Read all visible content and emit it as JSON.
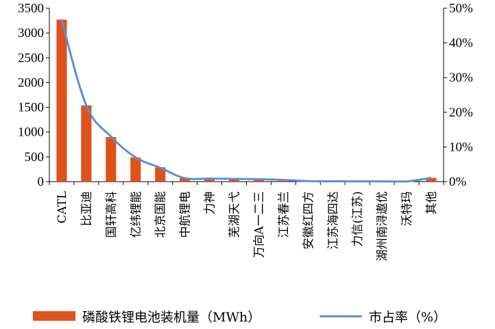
{
  "chart_data": {
    "type": "bar",
    "categories": [
      "CATL",
      "比亚迪",
      "国轩高科",
      "亿纬锂能",
      "北京国能",
      "中航锂电",
      "力神",
      "芜湖天弋",
      "万向A一二三",
      "江苏春兰",
      "安徽红四方",
      "江苏海四达",
      "力信(江苏)",
      "湖州南浔遨优",
      "沃特玛",
      "其他"
    ],
    "series": [
      {
        "name": "磷酸铁锂电池装机量（MWh）",
        "type": "bar",
        "axis": "left",
        "values": [
          3270,
          1540,
          900,
          490,
          290,
          70,
          50,
          45,
          40,
          30,
          10,
          8,
          6,
          5,
          5,
          75
        ]
      },
      {
        "name": "市占率（%）",
        "type": "line",
        "axis": "right",
        "values": [
          46.5,
          22,
          13,
          7,
          4,
          1,
          0.9,
          0.8,
          0.7,
          0.5,
          0.15,
          0.1,
          0.08,
          0.07,
          0.07,
          1.1
        ]
      }
    ],
    "ylim": [
      0,
      3500
    ],
    "yticks": [
      "0",
      "500",
      "1000",
      "1500",
      "2000",
      "2500",
      "3000",
      "3500"
    ],
    "y2lim": [
      0,
      50
    ],
    "y2ticks": [
      "0%",
      "10%",
      "20%",
      "30%",
      "40%",
      "50%"
    ],
    "legend_position": "bottom",
    "grid": false,
    "colors": {
      "bar": "#e0511c",
      "line": "#5b8fd6"
    }
  }
}
